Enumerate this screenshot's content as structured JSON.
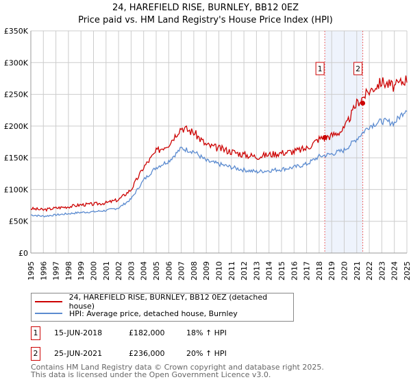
{
  "title": "24, HAREFIELD RISE, BURNLEY, BB12 0EZ",
  "subtitle": "Price paid vs. HM Land Registry's House Price Index (HPI)",
  "legend": {
    "property": "24, HAREFIELD RISE, BURNLEY, BB12 0EZ (detached house)",
    "hpi": "HPI: Average price, detached house, Burnley"
  },
  "transactions": [
    {
      "n": "1",
      "date": "15-JUN-2018",
      "price": "£182,000",
      "delta": "18% ↑ HPI",
      "year": 2018.45,
      "value": 182000
    },
    {
      "n": "2",
      "date": "25-JUN-2021",
      "price": "£236,000",
      "delta": "20% ↑ HPI",
      "year": 2021.48,
      "value": 236000
    }
  ],
  "footer": {
    "line1": "Contains HM Land Registry data © Crown copyright and database right 2025.",
    "line2": "This data is licensed under the Open Government Licence v3.0."
  },
  "colors": {
    "property": "#cc0000",
    "hpi": "#5b8bd0",
    "band": "#eef3fc"
  },
  "chart_data": {
    "type": "line",
    "xlim": [
      1995,
      2025
    ],
    "ylim": [
      0,
      350000
    ],
    "yticks": [
      {
        "v": 0,
        "l": "£0"
      },
      {
        "v": 50000,
        "l": "£50K"
      },
      {
        "v": 100000,
        "l": "£100K"
      },
      {
        "v": 150000,
        "l": "£150K"
      },
      {
        "v": 200000,
        "l": "£200K"
      },
      {
        "v": 250000,
        "l": "£250K"
      },
      {
        "v": 300000,
        "l": "£300K"
      },
      {
        "v": 350000,
        "l": "£350K"
      }
    ],
    "xticks": [
      "1995",
      "1996",
      "1997",
      "1998",
      "1999",
      "2000",
      "2001",
      "2002",
      "2003",
      "2004",
      "2005",
      "2006",
      "2007",
      "2008",
      "2009",
      "2010",
      "2011",
      "2012",
      "2013",
      "2014",
      "2015",
      "2016",
      "2017",
      "2018",
      "2019",
      "2020",
      "2021",
      "2022",
      "2023",
      "2024",
      "2025"
    ],
    "x": [
      1995,
      1996,
      1997,
      1998,
      1999,
      2000,
      2001,
      2002,
      2003,
      2004,
      2005,
      2006,
      2007,
      2008,
      2009,
      2010,
      2011,
      2012,
      2013,
      2014,
      2015,
      2016,
      2017,
      2018,
      2019,
      2020,
      2021,
      2022,
      2023,
      2024,
      2025
    ],
    "series": [
      {
        "name": "24, HAREFIELD RISE, BURNLEY, BB12 0EZ (detached house)",
        "values": [
          70000,
          68000,
          71000,
          73000,
          76000,
          77000,
          79000,
          84000,
          100000,
          135000,
          160000,
          172000,
          198000,
          190000,
          170000,
          165000,
          160000,
          155000,
          152000,
          155000,
          158000,
          160000,
          165000,
          180000,
          185000,
          195000,
          236000,
          255000,
          270000,
          262000,
          275000
        ]
      },
      {
        "name": "HPI: Average price, detached house, Burnley",
        "values": [
          60000,
          58000,
          60000,
          62000,
          64000,
          65000,
          67000,
          71000,
          85000,
          115000,
          135000,
          145000,
          165000,
          160000,
          145000,
          140000,
          135000,
          131000,
          128000,
          130000,
          132000,
          135000,
          140000,
          152000,
          156000,
          162000,
          180000,
          200000,
          208000,
          205000,
          228000
        ]
      }
    ]
  }
}
